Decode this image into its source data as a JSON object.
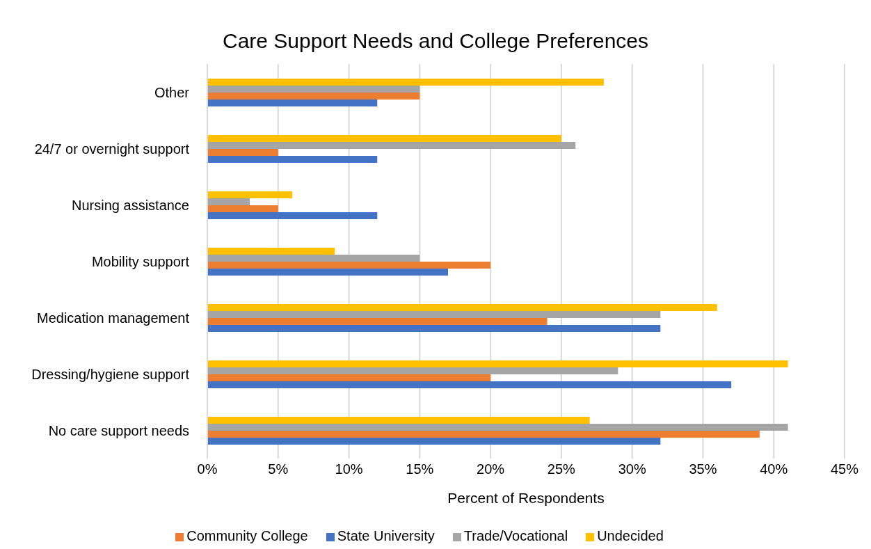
{
  "chart_data": {
    "type": "bar",
    "orientation": "horizontal",
    "title": "Care Support Needs and College Preferences",
    "xlabel": "Percent of Respondents",
    "categories": [
      "Other",
      "24/7 or overnight support",
      "Nursing assistance",
      "Mobility support",
      "Medication management",
      "Dressing/hygiene support",
      "No care support needs"
    ],
    "series": [
      {
        "name": "Undecided",
        "color": "#ffc000",
        "values": [
          28,
          25,
          6,
          9,
          36,
          41,
          27
        ]
      },
      {
        "name": "Trade/Vocational",
        "color": "#a5a5a5",
        "values": [
          15,
          26,
          3,
          15,
          32,
          29,
          41
        ]
      },
      {
        "name": "Community College",
        "color": "#ed7d31",
        "values": [
          15,
          5,
          5,
          20,
          24,
          20,
          39
        ]
      },
      {
        "name": "State University",
        "color": "#4472c4",
        "values": [
          12,
          12,
          12,
          17,
          32,
          37,
          32
        ]
      }
    ],
    "xlim": [
      0,
      45
    ],
    "xticks": [
      {
        "value": 0,
        "label": "0%"
      },
      {
        "value": 5,
        "label": "5%"
      },
      {
        "value": 10,
        "label": "10%"
      },
      {
        "value": 15,
        "label": "15%"
      },
      {
        "value": 20,
        "label": "20%"
      },
      {
        "value": 25,
        "label": "25%"
      },
      {
        "value": 30,
        "label": "30%"
      },
      {
        "value": 35,
        "label": "35%"
      },
      {
        "value": 40,
        "label": "40%"
      },
      {
        "value": 45,
        "label": "45%"
      }
    ],
    "grid": "x",
    "legend": "bottom"
  }
}
